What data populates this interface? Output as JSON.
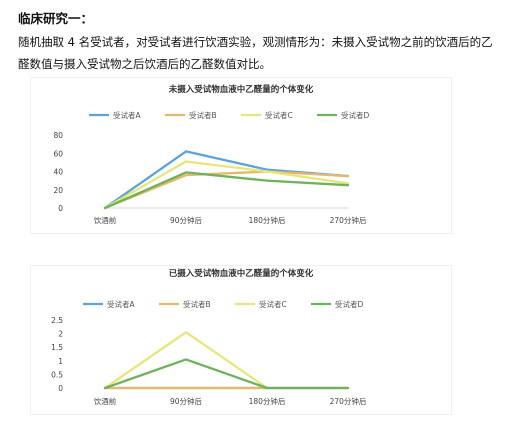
{
  "document": {
    "heading": "临床研究一：",
    "paragraph": "随机抽取 4 名受试者，对受试者进行饮酒实验，观测情形为：未摄入受试物之前的饮酒后的乙醛数值与摄入受试物之后饮酒后的乙醛数值对比。"
  },
  "chart_data": [
    {
      "type": "line",
      "title": "未摄入受试物血液中乙醛量的个体变化",
      "categories": [
        "饮酒前",
        "90分钟后",
        "180分钟后",
        "270分钟后"
      ],
      "yticks": [
        "80",
        "60",
        "40",
        "20",
        "0"
      ],
      "ylim": [
        0,
        80
      ],
      "grid": false,
      "legend": "top",
      "series": [
        {
          "name": "受试者A",
          "color": "#5ba3d9",
          "values": [
            0,
            62,
            42,
            35
          ]
        },
        {
          "name": "受试者B",
          "color": "#e8b86a",
          "values": [
            0,
            36,
            40,
            35
          ]
        },
        {
          "name": "受试者C",
          "color": "#e6e67a",
          "values": [
            0,
            51,
            40,
            27
          ]
        },
        {
          "name": "受试者D",
          "color": "#6cb35a",
          "values": [
            0,
            39,
            30,
            25
          ]
        }
      ]
    },
    {
      "type": "line",
      "title": "已摄入受试物血液中乙醛量的个体变化",
      "categories": [
        "饮酒前",
        "90分钟后",
        "180分钟后",
        "270分钟后"
      ],
      "yticks": [
        "2.5",
        "2",
        "1.5",
        "1",
        "0.5",
        "0"
      ],
      "ylim": [
        0,
        2.5
      ],
      "grid": false,
      "legend": "top",
      "series": [
        {
          "name": "受试者A",
          "color": "#5ba3d9",
          "values": [
            0,
            0,
            0,
            0
          ]
        },
        {
          "name": "受试者B",
          "color": "#e8b86a",
          "values": [
            0,
            0,
            0,
            0
          ]
        },
        {
          "name": "受试者C",
          "color": "#e6e67a",
          "values": [
            0,
            2.05,
            0,
            0
          ]
        },
        {
          "name": "受试者D",
          "color": "#6cb35a",
          "values": [
            0,
            1.05,
            0,
            0
          ]
        }
      ]
    }
  ]
}
